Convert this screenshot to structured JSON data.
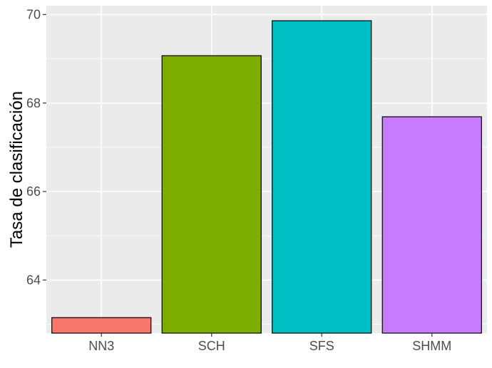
{
  "chart_data": {
    "type": "bar",
    "title": "",
    "xlabel": "",
    "ylabel": "Tasa de clasificación",
    "categories": [
      "NN3",
      "SCH",
      "SFS",
      "SHMM"
    ],
    "values": [
      63.15,
      69.07,
      69.86,
      67.69
    ],
    "colors": [
      "#F8766D",
      "#7CAE00",
      "#00BFC4",
      "#C77CFF"
    ],
    "ylim": [
      62.8,
      70.2
    ],
    "yticks": [
      64,
      66,
      68,
      70
    ],
    "grid": true,
    "panel_background": "#EBEBEB",
    "grid_color": "#FFFFFF",
    "bar_outline": "#000000"
  }
}
